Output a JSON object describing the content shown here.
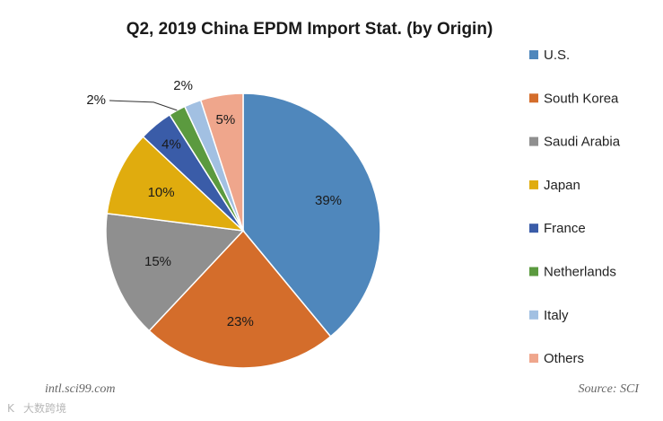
{
  "chart_data": {
    "type": "pie",
    "title": "Q2, 2019 China EPDM Import Stat. (by Origin)",
    "categories": [
      "U.S.",
      "South Korea",
      "Saudi Arabia",
      "Japan",
      "France",
      "Netherlands",
      "Italy",
      "Others"
    ],
    "values": [
      39,
      23,
      15,
      10,
      4,
      2,
      2,
      5
    ],
    "labels": [
      "39%",
      "23%",
      "15%",
      "10%",
      "4%",
      "2%",
      "2%",
      "5%"
    ],
    "colors": [
      "#4f87bc",
      "#d46d2b",
      "#8f8f8f",
      "#e0ac0e",
      "#3a5ca8",
      "#5b9a3f",
      "#a2c0e2",
      "#efa68c"
    ],
    "legend_position": "right"
  },
  "footer": {
    "website": "intl.sci99.com",
    "source": "Source: SCI",
    "watermark": "大数跨境"
  }
}
